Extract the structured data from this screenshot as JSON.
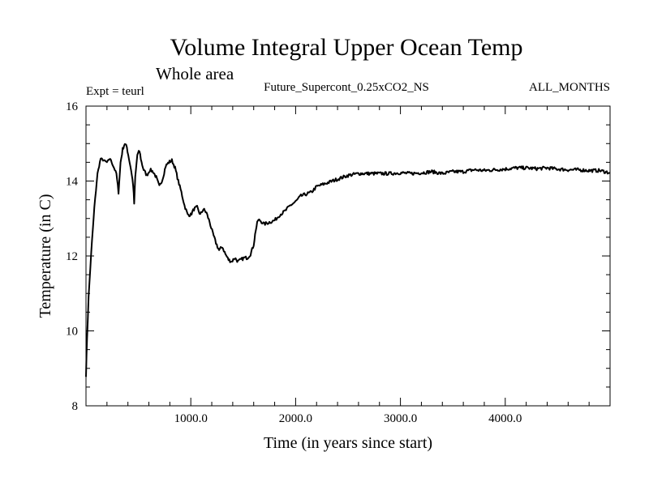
{
  "chart_data": {
    "type": "line",
    "title": "Volume Integral Upper Ocean Temp",
    "subtitle": "Whole area",
    "expt_label": "Expt = teurl",
    "run_label": "Future_Supercont_0.25xCO2_NS",
    "months_label": "ALL_MONTHS",
    "xlabel": "Time (in years since start)",
    "ylabel": "Temperature (in C)",
    "xlim": [
      0,
      5000
    ],
    "ylim": [
      8,
      16
    ],
    "x_ticks": [
      1000,
      2000,
      3000,
      4000
    ],
    "x_tick_labels": [
      "1000.0",
      "2000.0",
      "3000.0",
      "4000.0"
    ],
    "y_ticks": [
      8,
      10,
      12,
      14,
      16
    ],
    "y_tick_labels": [
      "8",
      "10",
      "12",
      "14",
      "16"
    ],
    "grid": false,
    "series": [
      {
        "color": "#000000",
        "x": [
          0,
          10,
          25,
          50,
          80,
          110,
          140,
          170,
          200,
          230,
          260,
          290,
          310,
          330,
          350,
          370,
          390,
          410,
          430,
          450,
          460,
          470,
          490,
          510,
          530,
          550,
          580,
          610,
          640,
          670,
          700,
          730,
          760,
          790,
          820,
          850,
          880,
          910,
          940,
          970,
          1000,
          1030,
          1060,
          1090,
          1120,
          1150,
          1180,
          1210,
          1240,
          1270,
          1300,
          1330,
          1360,
          1390,
          1420,
          1450,
          1480,
          1510,
          1540,
          1570,
          1600,
          1620,
          1640,
          1660,
          1700,
          1750,
          1800,
          1850,
          1900,
          1950,
          2000,
          2050,
          2100,
          2150,
          2200,
          2250,
          2300,
          2350,
          2400,
          2450,
          2500,
          2600,
          2700,
          2800,
          2900,
          3000,
          3100,
          3200,
          3300,
          3400,
          3500,
          3600,
          3700,
          3800,
          3900,
          4000,
          4100,
          4200,
          4300,
          4400,
          4500,
          4600,
          4700,
          4800,
          4900,
          5000
        ],
        "y": [
          8.8,
          9.8,
          10.9,
          12.1,
          13.3,
          14.2,
          14.6,
          14.55,
          14.5,
          14.6,
          14.4,
          14.2,
          13.7,
          14.5,
          14.85,
          15.0,
          14.9,
          14.6,
          14.3,
          13.9,
          13.4,
          14.1,
          14.7,
          14.8,
          14.5,
          14.3,
          14.15,
          14.3,
          14.25,
          14.1,
          13.85,
          14.05,
          14.4,
          14.5,
          14.55,
          14.35,
          14.0,
          13.7,
          13.35,
          13.1,
          13.1,
          13.25,
          13.3,
          13.1,
          13.25,
          13.15,
          12.9,
          12.6,
          12.35,
          12.15,
          12.25,
          12.05,
          11.9,
          11.85,
          11.95,
          11.85,
          11.9,
          11.95,
          11.95,
          12.05,
          12.3,
          12.7,
          12.95,
          12.95,
          12.85,
          12.9,
          12.95,
          13.1,
          13.2,
          13.35,
          13.45,
          13.6,
          13.65,
          13.7,
          13.85,
          13.9,
          13.95,
          14.0,
          14.05,
          14.1,
          14.15,
          14.2,
          14.2,
          14.2,
          14.2,
          14.22,
          14.2,
          14.22,
          14.25,
          14.2,
          14.25,
          14.25,
          14.3,
          14.28,
          14.3,
          14.32,
          14.35,
          14.35,
          14.33,
          14.35,
          14.32,
          14.3,
          14.3,
          14.28,
          14.28,
          14.22
        ]
      }
    ]
  }
}
